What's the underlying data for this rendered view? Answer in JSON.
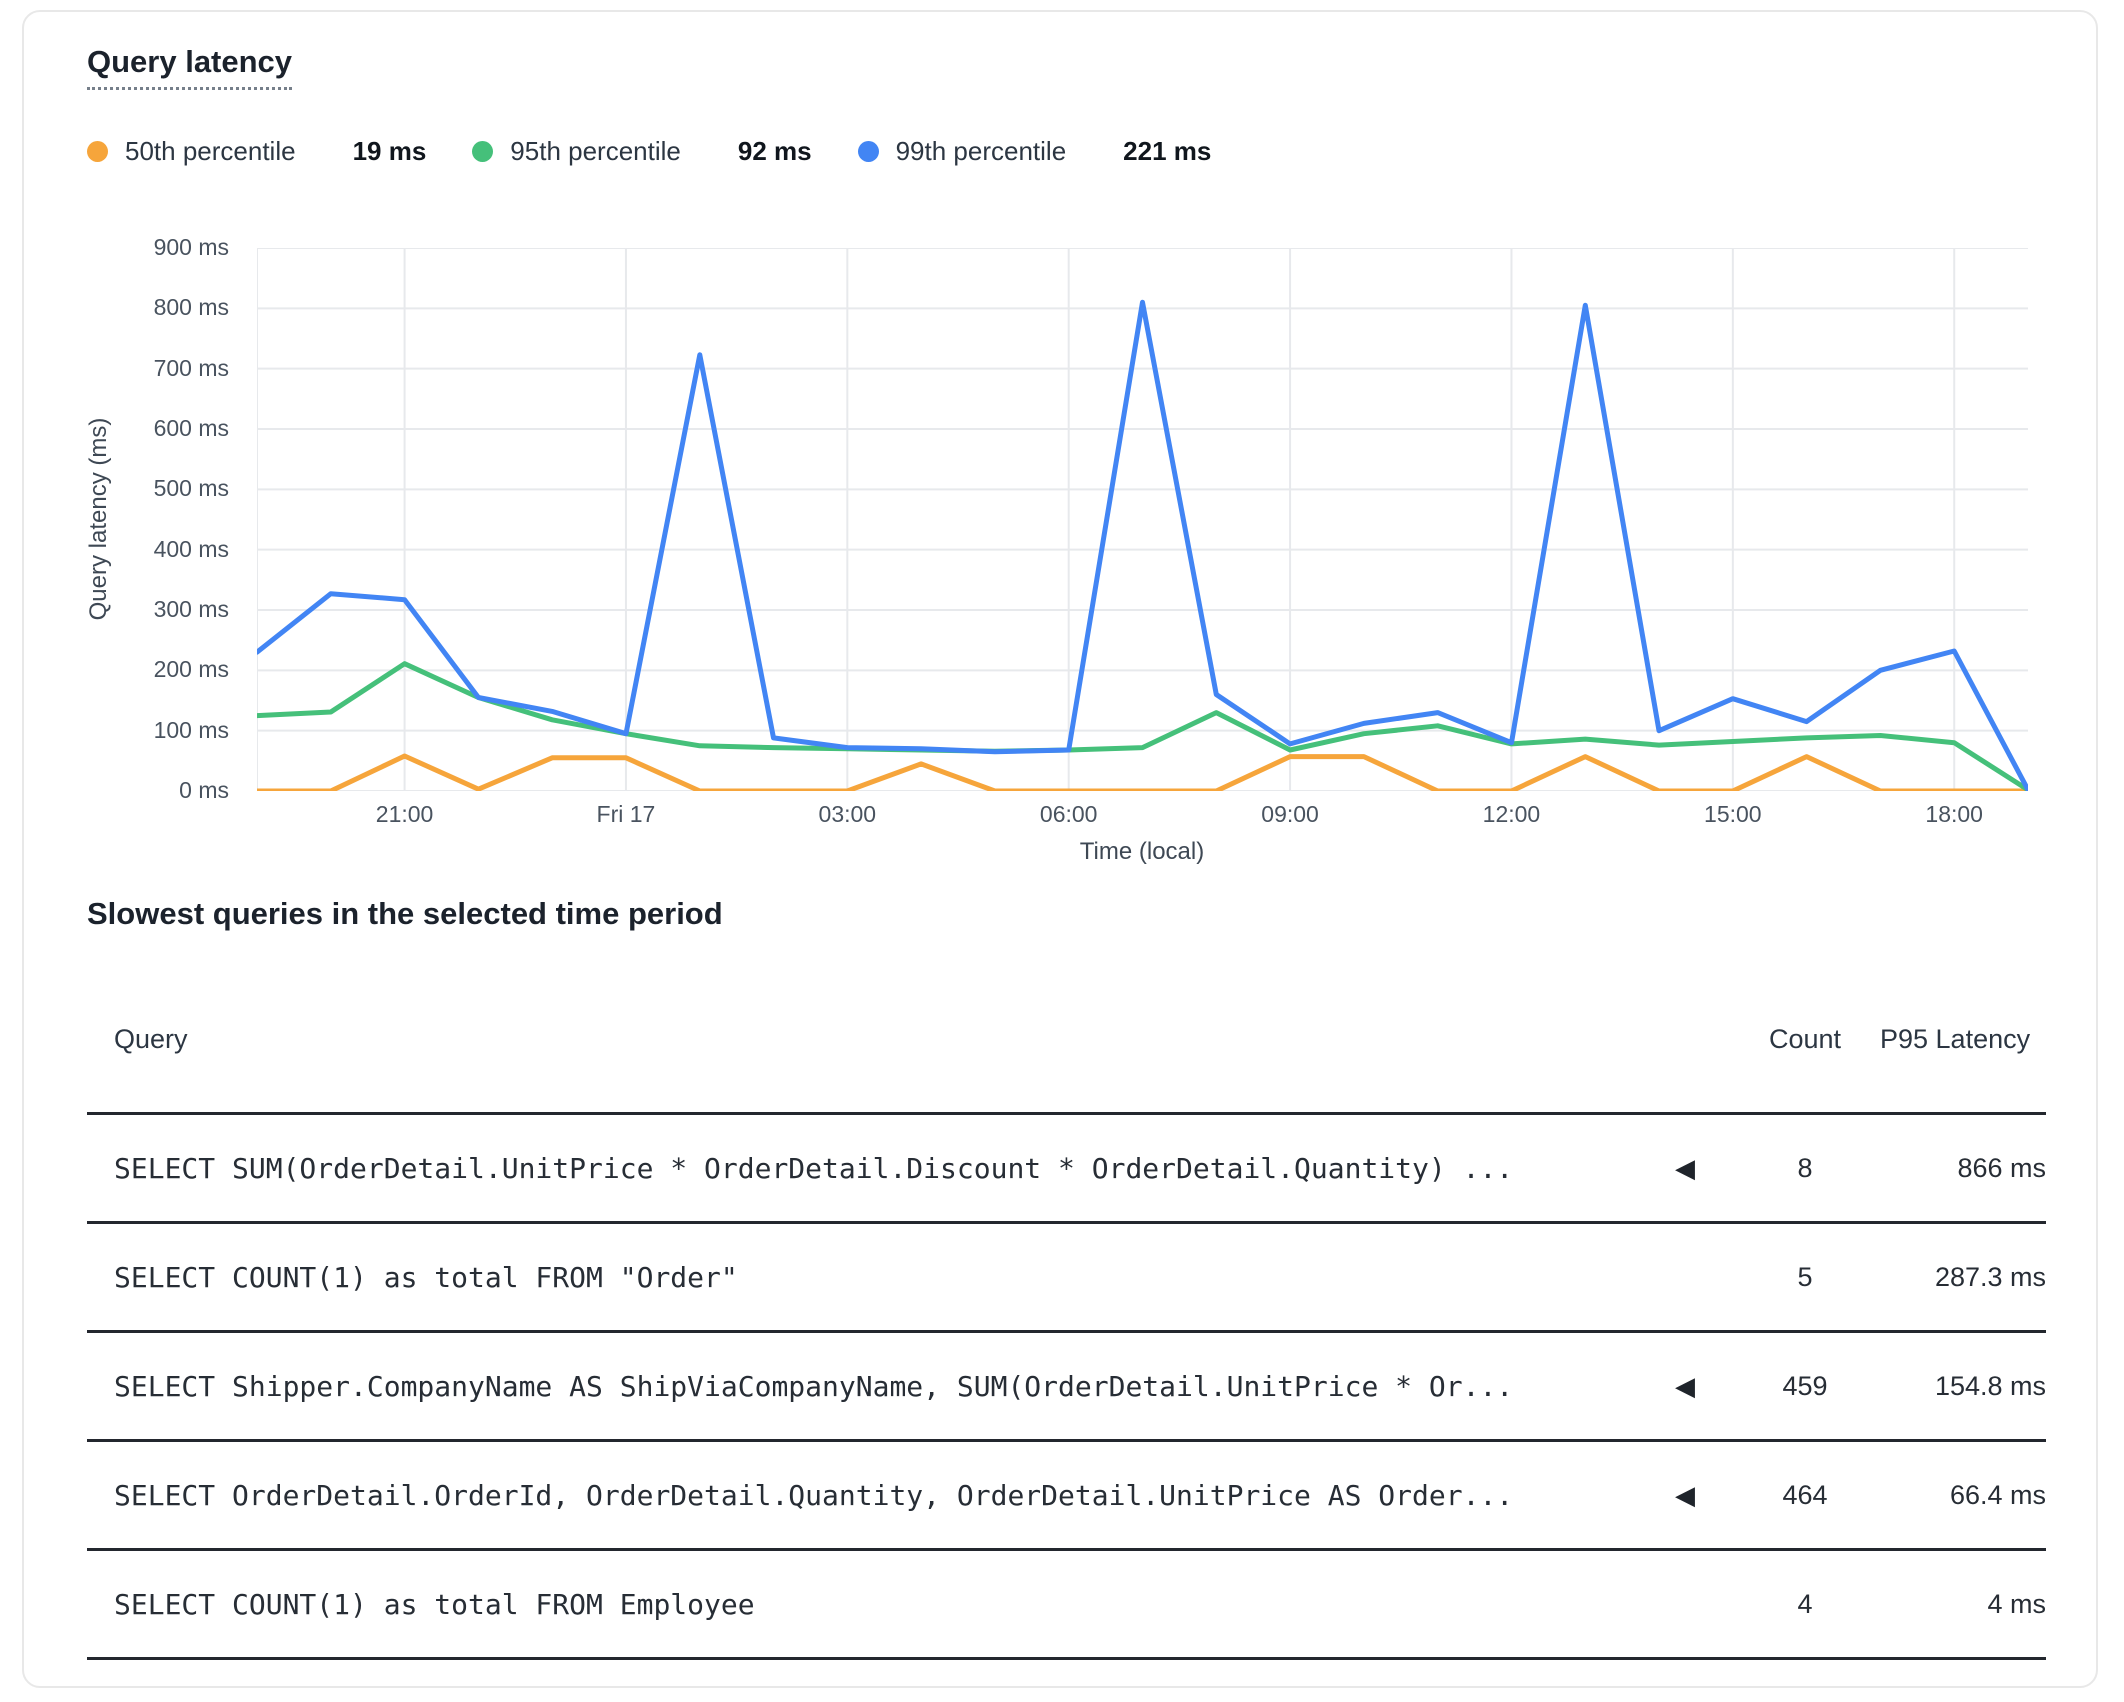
{
  "chart": {
    "title": "Query latency",
    "ylabel": "Query latency (ms)",
    "xlabel": "Time (local)",
    "legend": [
      {
        "label": "50th percentile",
        "value": "19 ms"
      },
      {
        "label": "95th percentile",
        "value": "92 ms"
      },
      {
        "label": "99th percentile",
        "value": "221 ms"
      }
    ]
  },
  "chart_data": {
    "type": "line",
    "title": "Query latency",
    "xlabel": "Time (local)",
    "ylabel": "Query latency (ms)",
    "ylim": [
      0,
      900
    ],
    "grid": true,
    "legend_position": "top",
    "y_ticks": [
      0,
      100,
      200,
      300,
      400,
      500,
      600,
      700,
      800,
      900
    ],
    "y_tick_suffix": " ms",
    "x": [
      "19:00",
      "20:00",
      "21:00",
      "22:00",
      "23:00",
      "Fri 17 00:00",
      "01:00",
      "02:00",
      "03:00",
      "04:00",
      "05:00",
      "06:00",
      "07:00",
      "08:00",
      "09:00",
      "10:00",
      "11:00",
      "12:00",
      "13:00",
      "14:00",
      "15:00",
      "16:00",
      "17:00",
      "18:00",
      "19:00"
    ],
    "x_tick_indices": [
      2,
      5,
      8,
      11,
      14,
      17,
      20,
      23
    ],
    "x_tick_labels": [
      "21:00",
      "Fri 17",
      "03:00",
      "06:00",
      "09:00",
      "12:00",
      "15:00",
      "18:00"
    ],
    "series": [
      {
        "name": "50th percentile",
        "color": "#F6A53B",
        "values": [
          0,
          0,
          58,
          3,
          55,
          55,
          0,
          0,
          0,
          45,
          0,
          0,
          0,
          0,
          57,
          57,
          0,
          0,
          57,
          0,
          0,
          57,
          0,
          0,
          0
        ]
      },
      {
        "name": "95th percentile",
        "color": "#45C07A",
        "values": [
          125,
          131,
          211,
          155,
          118,
          95,
          75,
          72,
          70,
          68,
          66,
          68,
          72,
          130,
          68,
          95,
          108,
          78,
          86,
          76,
          82,
          88,
          92,
          80,
          2
        ]
      },
      {
        "name": "99th percentile",
        "color": "#4285F4",
        "values": [
          230,
          327,
          317,
          155,
          132,
          95,
          723,
          88,
          72,
          70,
          65,
          68,
          810,
          160,
          78,
          112,
          130,
          80,
          805,
          100,
          153,
          115,
          200,
          232,
          2
        ]
      }
    ]
  },
  "table": {
    "heading": "Slowest queries in the selected time period",
    "columns": [
      "Query",
      "Count",
      "P95 Latency"
    ],
    "rows": [
      {
        "query": "SELECT SUM(OrderDetail.UnitPrice * OrderDetail.Discount * OrderDetail.Quantity) ...",
        "has_marker": true,
        "count": "8",
        "p95": "866 ms"
      },
      {
        "query": "SELECT COUNT(1) as total FROM \"Order\"",
        "has_marker": false,
        "count": "5",
        "p95": "287.3 ms"
      },
      {
        "query": "SELECT Shipper.CompanyName AS ShipViaCompanyName, SUM(OrderDetail.UnitPrice * Or...",
        "has_marker": true,
        "count": "459",
        "p95": "154.8 ms"
      },
      {
        "query": "SELECT OrderDetail.OrderId, OrderDetail.Quantity, OrderDetail.UnitPrice AS Order...",
        "has_marker": true,
        "count": "464",
        "p95": "66.4 ms"
      },
      {
        "query": "SELECT COUNT(1) as total FROM Employee",
        "has_marker": false,
        "count": "4",
        "p95": "4 ms"
      }
    ]
  },
  "icons": {
    "expand_marker": "◀"
  },
  "colors": {
    "p50": "#F6A53B",
    "p95": "#45C07A",
    "p99": "#4285F4",
    "gridline": "#e7e9ec",
    "row_border": "#23272e",
    "card_border": "#e8e8e8"
  }
}
